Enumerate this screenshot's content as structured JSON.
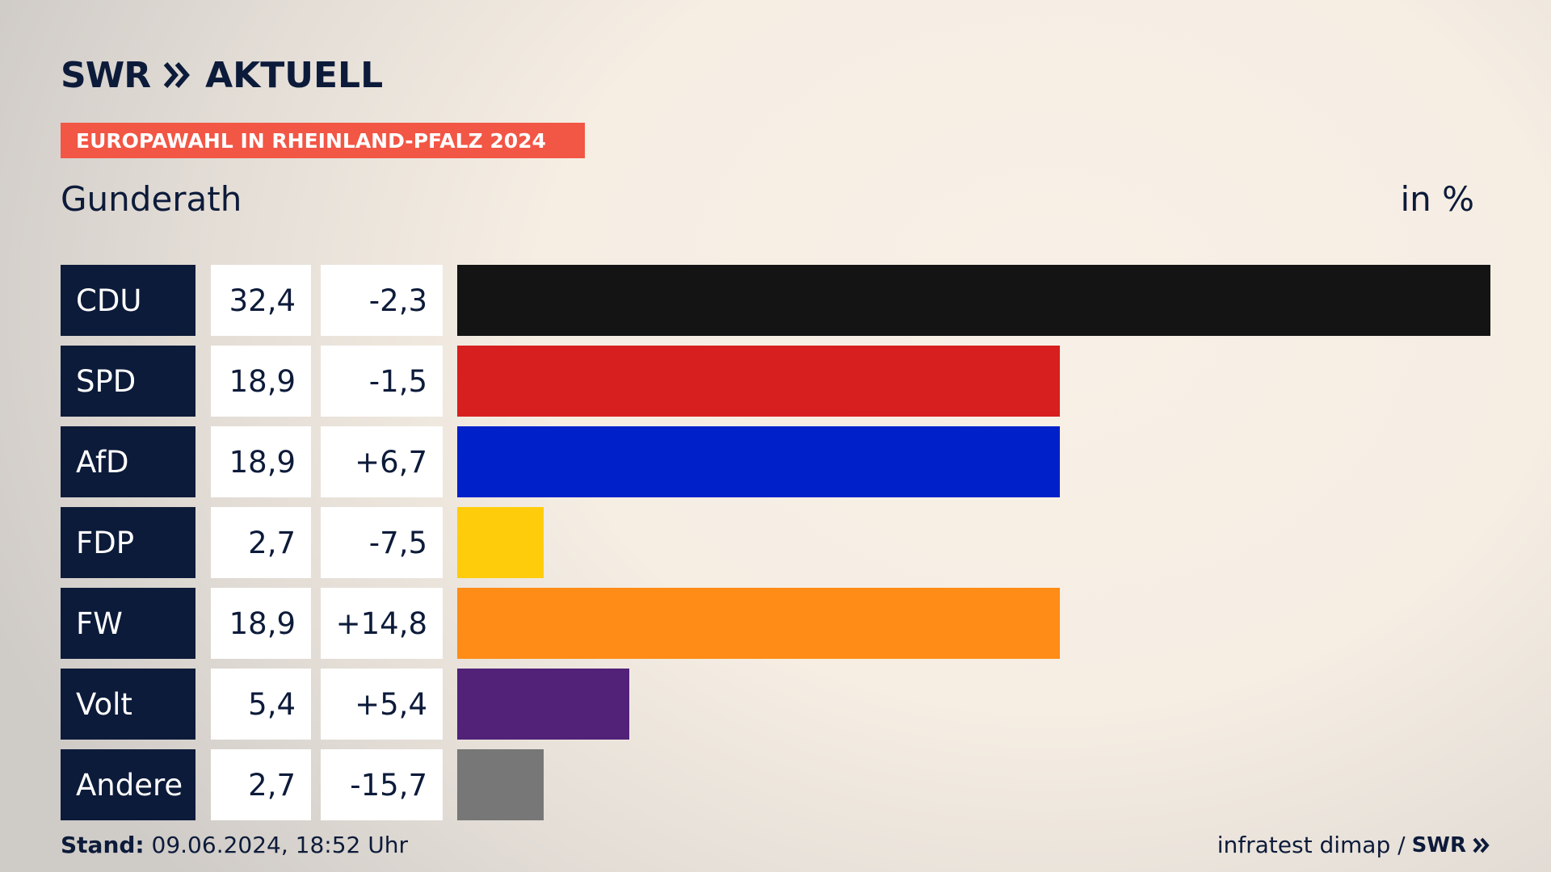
{
  "header": {
    "brand": "SWR",
    "brand_suffix": "AKTUELL",
    "banner": "EUROPAWAHL IN RHEINLAND-PFALZ 2024",
    "region": "Gunderath",
    "unit": "in %"
  },
  "chart_data": {
    "type": "bar",
    "orientation": "horizontal",
    "categories": [
      "CDU",
      "SPD",
      "AfD",
      "FDP",
      "FW",
      "Volt",
      "Andere"
    ],
    "values": [
      32.4,
      18.9,
      18.9,
      2.7,
      18.9,
      5.4,
      2.7
    ],
    "value_labels": [
      "32,4",
      "18,9",
      "18,9",
      "2,7",
      "18,9",
      "5,4",
      "2,7"
    ],
    "diff_labels": [
      "-2,3",
      "-1,5",
      "+6,7",
      "-7,5",
      "+14,8",
      "+5,4",
      "-15,7"
    ],
    "colors": [
      "#141414",
      "#d71f1f",
      "#0021c9",
      "#ffcc0b",
      "#ff8c17",
      "#512278",
      "#777777"
    ],
    "xlim": [
      0,
      32.4
    ]
  },
  "footer": {
    "stand_label": "Stand:",
    "stand_value": "09.06.2024, 18:52 Uhr",
    "source": "infratest dimap /",
    "source_brand": "SWR"
  }
}
